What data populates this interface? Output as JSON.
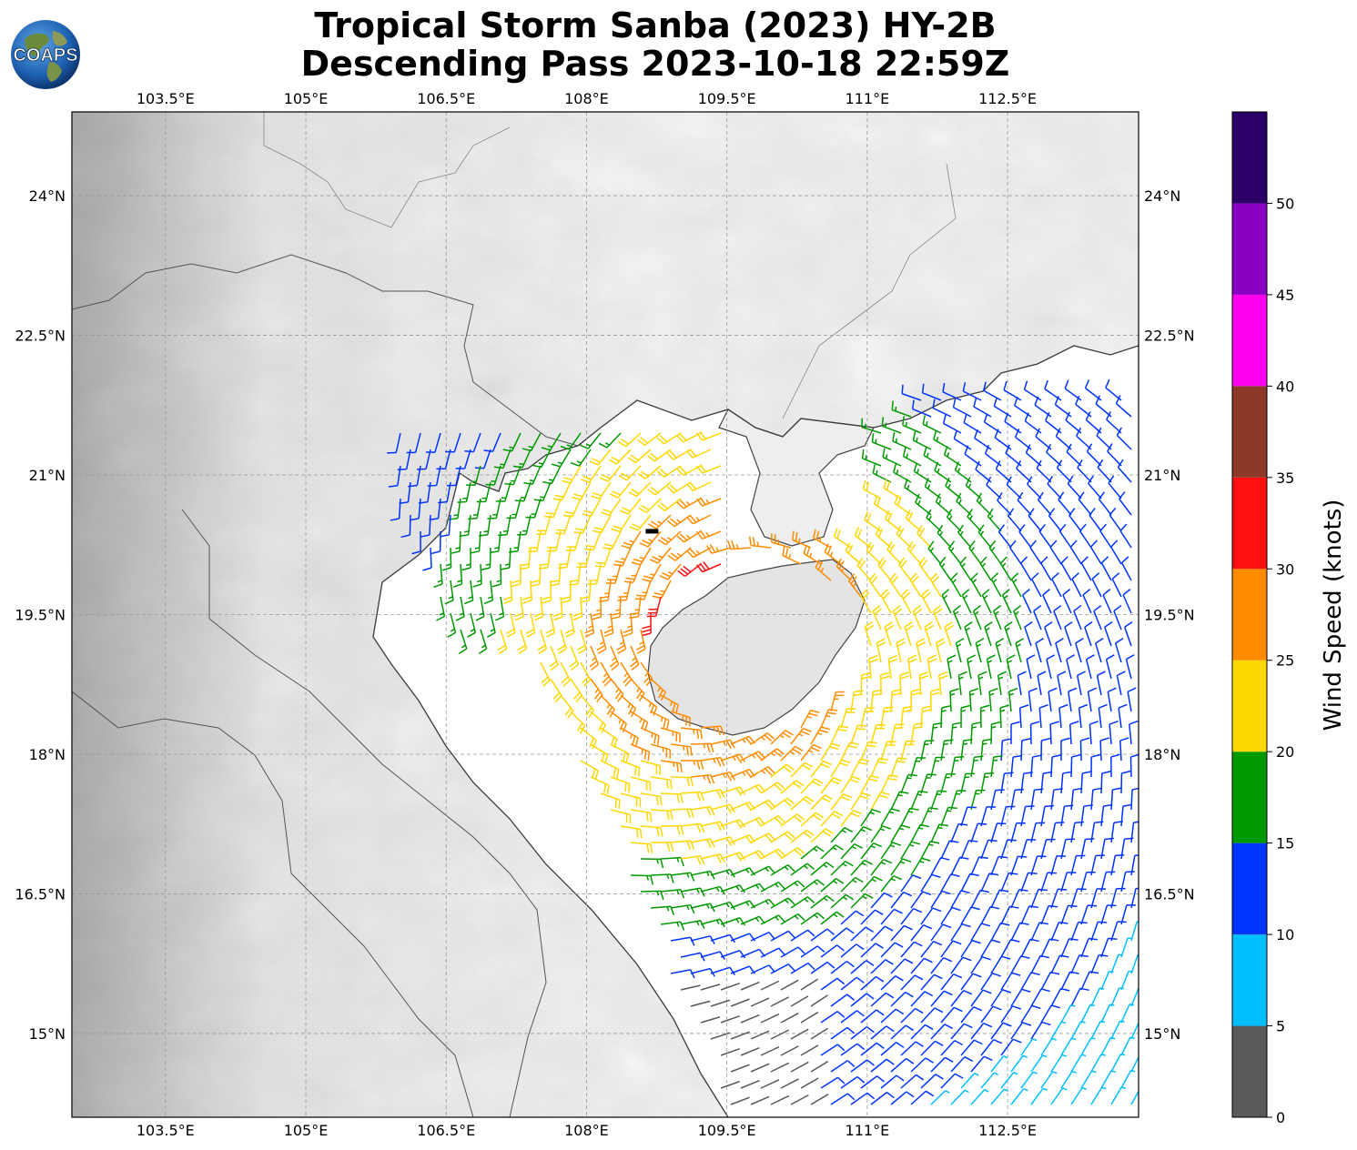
{
  "title": {
    "line1": "Tropical Storm Sanba (2023) HY-2B",
    "line2": "Descending Pass 2023-10-18 22:59Z"
  },
  "logo": {
    "text": "COAPS",
    "icon": "globe-logo-icon"
  },
  "map": {
    "lon_ticks": [
      "103.5°E",
      "105°E",
      "106.5°E",
      "108°E",
      "109.5°E",
      "111°E",
      "112.5°E"
    ],
    "lat_ticks": [
      "24°N",
      "22.5°N",
      "21°N",
      "19.5°N",
      "18°N",
      "16.5°N",
      "15°N"
    ],
    "lon_range": [
      102.5,
      113.9
    ],
    "lat_range": [
      14.1,
      24.9
    ],
    "background": "grayscale-topography",
    "gridlines": true
  },
  "colorbar": {
    "label": "Wind Speed (knots)",
    "ticks": [
      "0",
      "5",
      "10",
      "15",
      "20",
      "25",
      "30",
      "35",
      "40",
      "45",
      "50"
    ],
    "bins": [
      {
        "min": 0,
        "max": 5,
        "color": "#595959"
      },
      {
        "min": 5,
        "max": 10,
        "color": "#00bfff"
      },
      {
        "min": 10,
        "max": 15,
        "color": "#0033ff"
      },
      {
        "min": 15,
        "max": 20,
        "color": "#009900"
      },
      {
        "min": 20,
        "max": 25,
        "color": "#ffd700"
      },
      {
        "min": 25,
        "max": 30,
        "color": "#ff8c00"
      },
      {
        "min": 30,
        "max": 35,
        "color": "#ff1010"
      },
      {
        "min": 35,
        "max": 40,
        "color": "#8b3a2a"
      },
      {
        "min": 40,
        "max": 45,
        "color": "#ff00ee"
      },
      {
        "min": 45,
        "max": 50,
        "color": "#8a00c2"
      },
      {
        "min": 50,
        "max": 55,
        "color": "#2b0066"
      }
    ]
  },
  "storm_center": {
    "lon": 108.7,
    "lat": 20.4
  }
}
